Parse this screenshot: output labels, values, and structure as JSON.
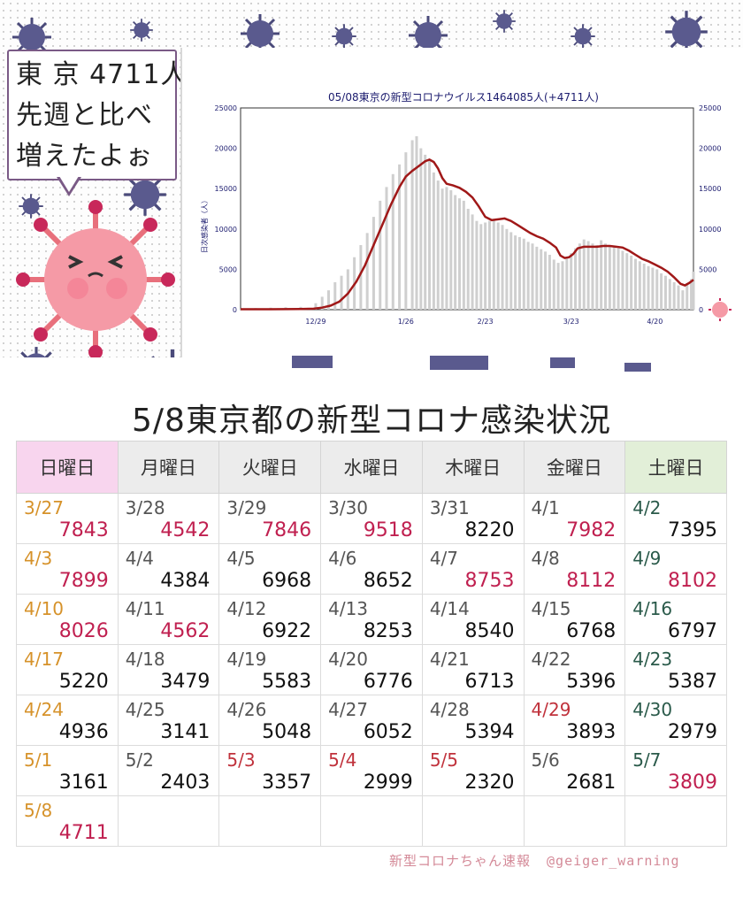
{
  "speech_bubble": {
    "line1": "東 京 4711人",
    "line2": "先週と比べ",
    "line3": "増えたよぉ"
  },
  "chart_data": {
    "type": "bar+line",
    "title": "05/08東京の新型コロナウイルス1464085人(+4711人)",
    "ylabel": "日次感染者（人）",
    "ylim": [
      0,
      25000
    ],
    "yticks": [
      "0",
      "5000",
      "10000",
      "15000",
      "20000",
      "25000"
    ],
    "xtick_labels": [
      "12/29",
      "1/26",
      "2/23",
      "3/23",
      "4/20"
    ],
    "bar_color": "#cfcfcf",
    "line_color": "#a01818",
    "moving_average": [
      [
        0,
        50
      ],
      [
        14,
        60
      ],
      [
        28,
        80
      ],
      [
        34,
        120
      ],
      [
        38,
        250
      ],
      [
        42,
        500
      ],
      [
        46,
        1000
      ],
      [
        50,
        2000
      ],
      [
        54,
        3500
      ],
      [
        58,
        5500
      ],
      [
        62,
        8000
      ],
      [
        66,
        10500
      ],
      [
        70,
        13000
      ],
      [
        74,
        15200
      ],
      [
        77,
        16500
      ],
      [
        80,
        17200
      ],
      [
        83,
        17800
      ],
      [
        86,
        18400
      ],
      [
        88,
        18600
      ],
      [
        90,
        18300
      ],
      [
        92,
        17500
      ],
      [
        94,
        16300
      ],
      [
        96,
        15600
      ],
      [
        99,
        15400
      ],
      [
        102,
        15100
      ],
      [
        105,
        14600
      ],
      [
        108,
        13900
      ],
      [
        111,
        12800
      ],
      [
        114,
        11500
      ],
      [
        117,
        11100
      ],
      [
        120,
        11200
      ],
      [
        123,
        11300
      ],
      [
        126,
        11000
      ],
      [
        129,
        10500
      ],
      [
        132,
        10000
      ],
      [
        135,
        9500
      ],
      [
        138,
        9100
      ],
      [
        141,
        8800
      ],
      [
        144,
        8300
      ],
      [
        147,
        7700
      ],
      [
        149,
        6700
      ],
      [
        151,
        6400
      ],
      [
        153,
        6500
      ],
      [
        155,
        6900
      ],
      [
        157,
        7600
      ],
      [
        160,
        7800
      ],
      [
        163,
        7800
      ],
      [
        166,
        7800
      ],
      [
        169,
        7900
      ],
      [
        172,
        7900
      ],
      [
        175,
        7800
      ],
      [
        178,
        7700
      ],
      [
        181,
        7300
      ],
      [
        184,
        6800
      ],
      [
        187,
        6300
      ],
      [
        190,
        6000
      ],
      [
        193,
        5600
      ],
      [
        196,
        5200
      ],
      [
        199,
        4700
      ],
      [
        202,
        4000
      ],
      [
        205,
        3200
      ],
      [
        207,
        3000
      ],
      [
        209,
        3300
      ],
      [
        211,
        3700
      ]
    ],
    "daily_bars": [
      [
        0,
        150
      ],
      [
        7,
        200
      ],
      [
        14,
        250
      ],
      [
        21,
        300
      ],
      [
        28,
        350
      ],
      [
        35,
        800
      ],
      [
        38,
        1600
      ],
      [
        41,
        2400
      ],
      [
        44,
        3400
      ],
      [
        47,
        4200
      ],
      [
        50,
        5000
      ],
      [
        53,
        6500
      ],
      [
        56,
        8000
      ],
      [
        59,
        9500
      ],
      [
        62,
        11500
      ],
      [
        65,
        13500
      ],
      [
        68,
        15200
      ],
      [
        71,
        16800
      ],
      [
        74,
        18000
      ],
      [
        77,
        19500
      ],
      [
        80,
        21000
      ],
      [
        82,
        21500
      ],
      [
        84,
        20000
      ],
      [
        86,
        19200
      ],
      [
        88,
        18500
      ],
      [
        90,
        17000
      ],
      [
        92,
        16000
      ],
      [
        94,
        15000
      ],
      [
        96,
        15200
      ],
      [
        98,
        14800
      ],
      [
        100,
        14200
      ],
      [
        102,
        13800
      ],
      [
        104,
        13500
      ],
      [
        106,
        12500
      ],
      [
        108,
        11800
      ],
      [
        110,
        11000
      ],
      [
        112,
        10600
      ],
      [
        114,
        10800
      ],
      [
        116,
        11000
      ],
      [
        118,
        11100
      ],
      [
        120,
        10800
      ],
      [
        122,
        10500
      ],
      [
        124,
        10000
      ],
      [
        126,
        9600
      ],
      [
        128,
        9200
      ],
      [
        130,
        9000
      ],
      [
        132,
        8800
      ],
      [
        134,
        8400
      ],
      [
        136,
        8200
      ],
      [
        138,
        7800
      ],
      [
        140,
        7500
      ],
      [
        142,
        7200
      ],
      [
        144,
        6800
      ],
      [
        146,
        6200
      ],
      [
        148,
        5800
      ],
      [
        150,
        6000
      ],
      [
        152,
        6400
      ],
      [
        154,
        7000
      ],
      [
        156,
        7600
      ],
      [
        158,
        8200
      ],
      [
        160,
        8700
      ],
      [
        162,
        8500
      ],
      [
        164,
        8200
      ],
      [
        166,
        8000
      ],
      [
        168,
        8600
      ],
      [
        170,
        8200
      ],
      [
        172,
        8000
      ],
      [
        174,
        7800
      ],
      [
        176,
        7600
      ],
      [
        178,
        7300
      ],
      [
        180,
        7000
      ],
      [
        182,
        6700
      ],
      [
        184,
        6300
      ],
      [
        186,
        6000
      ],
      [
        188,
        5700
      ],
      [
        190,
        5400
      ],
      [
        192,
        5200
      ],
      [
        194,
        5000
      ],
      [
        196,
        4500
      ],
      [
        198,
        4200
      ],
      [
        200,
        3800
      ],
      [
        202,
        3400
      ],
      [
        204,
        3000
      ],
      [
        206,
        2400
      ],
      [
        208,
        3300
      ],
      [
        210,
        3800
      ],
      [
        211,
        4711
      ]
    ]
  },
  "table": {
    "title": "5/8東京都の新型コロナ感染状況",
    "headers": [
      "日曜日",
      "月曜日",
      "火曜日",
      "水曜日",
      "木曜日",
      "金曜日",
      "土曜日"
    ],
    "rows": [
      [
        {
          "date": "3/27",
          "value": "7843",
          "dtype": "sun",
          "vtype": "up"
        },
        {
          "date": "3/28",
          "value": "4542",
          "dtype": "",
          "vtype": "up"
        },
        {
          "date": "3/29",
          "value": "7846",
          "dtype": "",
          "vtype": "up"
        },
        {
          "date": "3/30",
          "value": "9518",
          "dtype": "",
          "vtype": "up"
        },
        {
          "date": "3/31",
          "value": "8220",
          "dtype": "",
          "vtype": ""
        },
        {
          "date": "4/1",
          "value": "7982",
          "dtype": "",
          "vtype": "up"
        },
        {
          "date": "4/2",
          "value": "7395",
          "dtype": "sat",
          "vtype": ""
        }
      ],
      [
        {
          "date": "4/3",
          "value": "7899",
          "dtype": "sun",
          "vtype": "up"
        },
        {
          "date": "4/4",
          "value": "4384",
          "dtype": "",
          "vtype": ""
        },
        {
          "date": "4/5",
          "value": "6968",
          "dtype": "",
          "vtype": ""
        },
        {
          "date": "4/6",
          "value": "8652",
          "dtype": "",
          "vtype": ""
        },
        {
          "date": "4/7",
          "value": "8753",
          "dtype": "",
          "vtype": "up"
        },
        {
          "date": "4/8",
          "value": "8112",
          "dtype": "",
          "vtype": "up"
        },
        {
          "date": "4/9",
          "value": "8102",
          "dtype": "sat",
          "vtype": "up"
        }
      ],
      [
        {
          "date": "4/10",
          "value": "8026",
          "dtype": "sun",
          "vtype": "up"
        },
        {
          "date": "4/11",
          "value": "4562",
          "dtype": "",
          "vtype": "up"
        },
        {
          "date": "4/12",
          "value": "6922",
          "dtype": "",
          "vtype": ""
        },
        {
          "date": "4/13",
          "value": "8253",
          "dtype": "",
          "vtype": ""
        },
        {
          "date": "4/14",
          "value": "8540",
          "dtype": "",
          "vtype": ""
        },
        {
          "date": "4/15",
          "value": "6768",
          "dtype": "",
          "vtype": ""
        },
        {
          "date": "4/16",
          "value": "6797",
          "dtype": "sat",
          "vtype": ""
        }
      ],
      [
        {
          "date": "4/17",
          "value": "5220",
          "dtype": "sun",
          "vtype": ""
        },
        {
          "date": "4/18",
          "value": "3479",
          "dtype": "",
          "vtype": ""
        },
        {
          "date": "4/19",
          "value": "5583",
          "dtype": "",
          "vtype": ""
        },
        {
          "date": "4/20",
          "value": "6776",
          "dtype": "",
          "vtype": ""
        },
        {
          "date": "4/21",
          "value": "6713",
          "dtype": "",
          "vtype": ""
        },
        {
          "date": "4/22",
          "value": "5396",
          "dtype": "",
          "vtype": ""
        },
        {
          "date": "4/23",
          "value": "5387",
          "dtype": "sat",
          "vtype": ""
        }
      ],
      [
        {
          "date": "4/24",
          "value": "4936",
          "dtype": "sun",
          "vtype": ""
        },
        {
          "date": "4/25",
          "value": "3141",
          "dtype": "",
          "vtype": ""
        },
        {
          "date": "4/26",
          "value": "5048",
          "dtype": "",
          "vtype": ""
        },
        {
          "date": "4/27",
          "value": "6052",
          "dtype": "",
          "vtype": ""
        },
        {
          "date": "4/28",
          "value": "5394",
          "dtype": "",
          "vtype": ""
        },
        {
          "date": "4/29",
          "value": "3893",
          "dtype": "hol",
          "vtype": ""
        },
        {
          "date": "4/30",
          "value": "2979",
          "dtype": "sat",
          "vtype": ""
        }
      ],
      [
        {
          "date": "5/1",
          "value": "3161",
          "dtype": "sun",
          "vtype": ""
        },
        {
          "date": "5/2",
          "value": "2403",
          "dtype": "",
          "vtype": ""
        },
        {
          "date": "5/3",
          "value": "3357",
          "dtype": "hol",
          "vtype": ""
        },
        {
          "date": "5/4",
          "value": "2999",
          "dtype": "hol",
          "vtype": ""
        },
        {
          "date": "5/5",
          "value": "2320",
          "dtype": "hol",
          "vtype": ""
        },
        {
          "date": "5/6",
          "value": "2681",
          "dtype": "",
          "vtype": ""
        },
        {
          "date": "5/7",
          "value": "3809",
          "dtype": "sat",
          "vtype": "up"
        }
      ],
      [
        {
          "date": "5/8",
          "value": "4711",
          "dtype": "sun",
          "vtype": "up"
        },
        {
          "date": "",
          "value": "",
          "dtype": "",
          "vtype": ""
        },
        {
          "date": "",
          "value": "",
          "dtype": "",
          "vtype": ""
        },
        {
          "date": "",
          "value": "",
          "dtype": "",
          "vtype": ""
        },
        {
          "date": "",
          "value": "",
          "dtype": "",
          "vtype": ""
        },
        {
          "date": "",
          "value": "",
          "dtype": "",
          "vtype": ""
        },
        {
          "date": "",
          "value": "",
          "dtype": "",
          "vtype": ""
        }
      ]
    ]
  },
  "footer": {
    "source": "新型コロナちゃん速報",
    "handle": "@geiger_warning"
  },
  "colors": {
    "sunday_header": "#f8d5ee",
    "saturday_header": "#e2efd8",
    "increase_value": "#c02050",
    "holiday_date": "#c0323c",
    "sunday_date": "#d6922a"
  }
}
